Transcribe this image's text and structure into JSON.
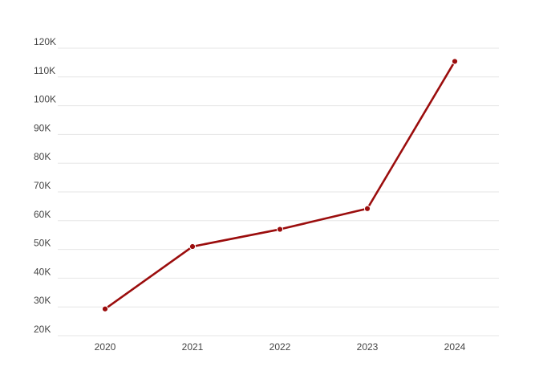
{
  "chart_data": {
    "type": "line",
    "title": "",
    "xlabel": "",
    "ylabel": "",
    "categories": [
      "2020",
      "2021",
      "2022",
      "2023",
      "2024"
    ],
    "series": [
      {
        "values": [
          29300,
          51000,
          57000,
          64200,
          115400
        ],
        "color": "#9b0d0d"
      }
    ],
    "ylim": [
      20000,
      120000
    ],
    "yticks": [
      20000,
      30000,
      40000,
      50000,
      60000,
      70000,
      80000,
      90000,
      100000,
      110000,
      120000
    ],
    "ytick_labels": [
      "20K",
      "30K",
      "40K",
      "50K",
      "60K",
      "70K",
      "80K",
      "90K",
      "100K",
      "110K",
      "120K"
    ],
    "grid": true,
    "legend": "none"
  }
}
